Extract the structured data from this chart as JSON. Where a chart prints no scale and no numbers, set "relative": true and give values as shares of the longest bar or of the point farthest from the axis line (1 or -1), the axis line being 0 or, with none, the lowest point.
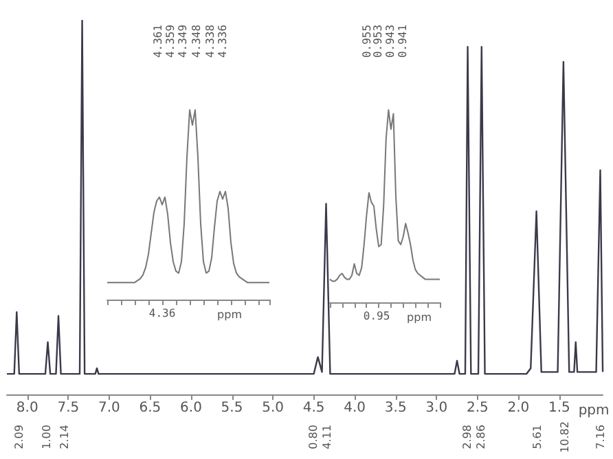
{
  "chart_data": [
    {
      "type": "line",
      "relative": true,
      "color": "#3a3a4a",
      "xlabel": "ppm",
      "xlim": [
        8.25,
        0.97
      ],
      "xticks": [
        {
          "value": 8,
          "label": "8.0"
        },
        {
          "value": 7.5,
          "label": "7.5"
        },
        {
          "value": 7,
          "label": "7.0"
        },
        {
          "value": 6.5,
          "label": "6.5"
        },
        {
          "value": 6,
          "label": "6.0"
        },
        {
          "value": 5.5,
          "label": "5.5"
        },
        {
          "value": 5,
          "label": "5.0"
        },
        {
          "value": 4.5,
          "label": "4.5"
        },
        {
          "value": 4,
          "label": "4.0"
        },
        {
          "value": 3.5,
          "label": "3.5"
        },
        {
          "value": 3,
          "label": "3.0"
        },
        {
          "value": 2.5,
          "label": "2.5"
        },
        {
          "value": 2,
          "label": "2.0"
        },
        {
          "value": 1.5,
          "label": "1.5"
        }
      ],
      "x": [
        8.25,
        8.16,
        8.13,
        8.1,
        7.78,
        7.75,
        7.72,
        7.65,
        7.62,
        7.59,
        7.36,
        7.33,
        7.3,
        7.17,
        7.15,
        7.13,
        4.5,
        4.45,
        4.4,
        4.35,
        4.3,
        2.78,
        2.75,
        2.72,
        2.65,
        2.62,
        2.58,
        2.49,
        2.45,
        2.41,
        1.9,
        1.85,
        1.78,
        1.72,
        1.52,
        1.45,
        1.38,
        1.32,
        1.3,
        1.28,
        1.05,
        1.0,
        0.97
      ],
      "values": [
        0.055,
        0.055,
        0.22,
        0.055,
        0.055,
        0.14,
        0.055,
        0.055,
        0.21,
        0.055,
        0.055,
        1.0,
        0.055,
        0.055,
        0.07,
        0.055,
        0.055,
        0.1,
        0.06,
        0.51,
        0.055,
        0.055,
        0.09,
        0.055,
        0.055,
        0.93,
        0.055,
        0.055,
        0.93,
        0.055,
        0.055,
        0.07,
        0.49,
        0.06,
        0.06,
        0.89,
        0.06,
        0.06,
        0.14,
        0.06,
        0.06,
        0.6,
        0.06
      ],
      "annotations": [
        "2.09",
        "1.00",
        "2.14",
        "0.80",
        "4.11",
        "2.98",
        "2.86",
        "5.61",
        "10.82",
        "7.16"
      ]
    },
    {
      "type": "line",
      "relative": true,
      "color": "#777777",
      "xlabel": "ppm",
      "categories": [
        null,
        null,
        null,
        null,
        null,
        null,
        null,
        null,
        null,
        null,
        null,
        null,
        null,
        null,
        null,
        null,
        null,
        null,
        null,
        null,
        null,
        null,
        null,
        null,
        null,
        null,
        null,
        null,
        null,
        null,
        null,
        null,
        null,
        null,
        null,
        null,
        null,
        null,
        null,
        null,
        null,
        null,
        null,
        null,
        null,
        null,
        null,
        null,
        null,
        null,
        null,
        null,
        null,
        null,
        null,
        null,
        null,
        null,
        null,
        null
      ],
      "values": [
        0.09,
        0.09,
        0.09,
        0.09,
        0.09,
        0.09,
        0.09,
        0.09,
        0.09,
        0.09,
        0.09,
        0.1,
        0.11,
        0.13,
        0.17,
        0.24,
        0.35,
        0.46,
        0.52,
        0.54,
        0.5,
        0.54,
        0.45,
        0.3,
        0.2,
        0.15,
        0.14,
        0.2,
        0.4,
        0.75,
        1.0,
        0.92,
        1.0,
        0.75,
        0.4,
        0.2,
        0.14,
        0.15,
        0.22,
        0.38,
        0.52,
        0.57,
        0.53,
        0.57,
        0.48,
        0.3,
        0.19,
        0.14,
        0.12,
        0.11,
        0.1,
        0.09,
        0.09,
        0.09,
        0.09,
        0.09,
        0.09,
        0.09,
        0.09,
        0.09
      ],
      "annotations": [
        "4.361",
        "4.359",
        "4.349",
        "4.348",
        "4.338",
        "4.336",
        "4.36"
      ]
    },
    {
      "type": "line",
      "relative": true,
      "color": "#777777",
      "xlabel": "ppm",
      "categories": [
        null,
        null,
        null,
        null,
        null,
        null,
        null,
        null,
        null,
        null,
        null,
        null,
        null,
        null,
        null,
        null,
        null,
        null,
        null,
        null,
        null,
        null,
        null,
        null,
        null,
        null,
        null,
        null,
        null,
        null,
        null,
        null,
        null,
        null,
        null,
        null,
        null,
        null,
        null,
        null,
        null,
        null,
        null,
        null,
        null,
        null
      ],
      "values": [
        0.12,
        0.11,
        0.11,
        0.12,
        0.14,
        0.15,
        0.13,
        0.12,
        0.12,
        0.14,
        0.2,
        0.15,
        0.14,
        0.18,
        0.3,
        0.45,
        0.57,
        0.52,
        0.5,
        0.38,
        0.29,
        0.3,
        0.5,
        0.85,
        1.0,
        0.9,
        0.98,
        0.55,
        0.32,
        0.3,
        0.34,
        0.41,
        0.36,
        0.3,
        0.22,
        0.17,
        0.15,
        0.14,
        0.13,
        0.12,
        0.12,
        0.12,
        0.12,
        0.12,
        0.12,
        0.12
      ],
      "annotations": [
        "0.955",
        "0.953",
        "0.943",
        "0.941",
        "0.95"
      ]
    }
  ]
}
